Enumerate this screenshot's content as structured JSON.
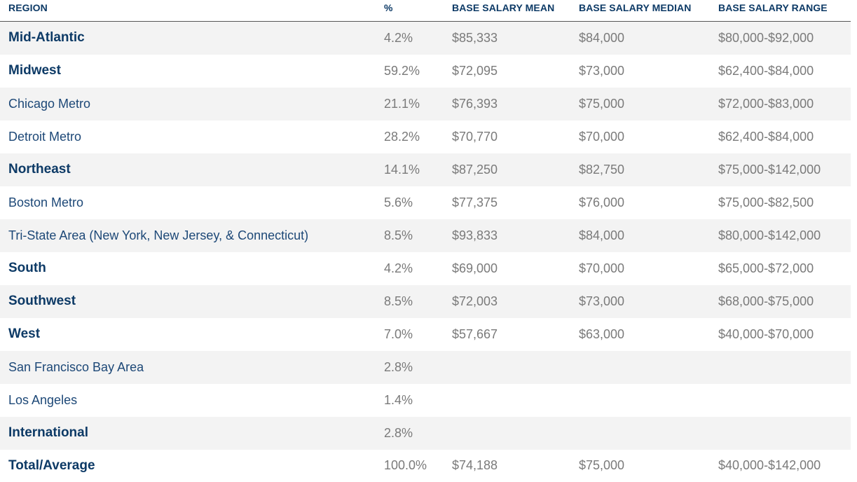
{
  "table": {
    "headers": {
      "region": "REGION",
      "pct": "%",
      "mean": "BASE SALARY MEAN",
      "median": "BASE SALARY MEDIAN",
      "range": "BASE SALARY RANGE"
    },
    "rows": [
      {
        "region": "Mid-Atlantic",
        "level": 1,
        "pct": "4.2%",
        "mean": "$85,333",
        "median": "$84,000",
        "range": "$80,000-$92,000"
      },
      {
        "region": "Midwest",
        "level": 1,
        "pct": "59.2%",
        "mean": "$72,095",
        "median": "$73,000",
        "range": "$62,400-$84,000"
      },
      {
        "region": "Chicago Metro",
        "level": 2,
        "pct": "21.1%",
        "mean": "$76,393",
        "median": "$75,000",
        "range": "$72,000-$83,000"
      },
      {
        "region": "Detroit Metro",
        "level": 2,
        "pct": "28.2%",
        "mean": "$70,770",
        "median": "$70,000",
        "range": "$62,400-$84,000"
      },
      {
        "region": "Northeast",
        "level": 1,
        "pct": "14.1%",
        "mean": "$87,250",
        "median": "$82,750",
        "range": "$75,000-$142,000"
      },
      {
        "region": "Boston Metro",
        "level": 2,
        "pct": "5.6%",
        "mean": "$77,375",
        "median": "$76,000",
        "range": "$75,000-$82,500"
      },
      {
        "region": "Tri-State Area (New York, New Jersey, & Connecticut)",
        "level": 2,
        "pct": "8.5%",
        "mean": "$93,833",
        "median": "$84,000",
        "range": "$80,000-$142,000"
      },
      {
        "region": "South",
        "level": 1,
        "pct": "4.2%",
        "mean": "$69,000",
        "median": "$70,000",
        "range": "$65,000-$72,000"
      },
      {
        "region": "Southwest",
        "level": 1,
        "pct": "8.5%",
        "mean": "$72,003",
        "median": "$73,000",
        "range": "$68,000-$75,000"
      },
      {
        "region": "West",
        "level": 1,
        "pct": "7.0%",
        "mean": "$57,667",
        "median": "$63,000",
        "range": "$40,000-$70,000"
      },
      {
        "region": "San Francisco Bay Area",
        "level": 2,
        "pct": "2.8%",
        "mean": "",
        "median": "",
        "range": ""
      },
      {
        "region": "Los Angeles",
        "level": 2,
        "pct": "1.4%",
        "mean": "",
        "median": "",
        "range": ""
      },
      {
        "region": "International",
        "level": 1,
        "pct": "2.8%",
        "mean": "",
        "median": "",
        "range": ""
      },
      {
        "region": "Total/Average",
        "level": 1,
        "pct": "100.0%",
        "mean": "$74,188",
        "median": "$75,000",
        "range": "$40,000-$142,000"
      }
    ]
  }
}
